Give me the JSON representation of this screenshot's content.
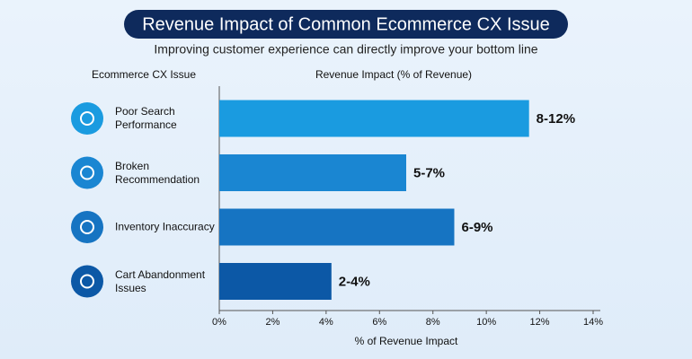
{
  "chart_data": {
    "type": "hbar",
    "title": "Revenue Impact of Common Ecommerce CX Issue",
    "subtitle": "Improving customer experience can directly improve your bottom line",
    "category_header": "Ecommerce CX Issue",
    "value_header": "Revenue Impact (% of Revenue)",
    "x_label": "% of Revenue Impact",
    "categories": [
      "Poor Search Performance",
      "Broken Recommendation",
      "Inventory Inaccuracy",
      "Cart Abandonment Issues"
    ],
    "values": [
      11.6,
      7,
      8.8,
      4.2
    ],
    "value_labels": [
      "8-12%",
      "5-7%",
      "6-9%",
      "2-4%"
    ],
    "colors": [
      "#1a9be0",
      "#1a86d2",
      "#1674c2",
      "#0c58a6"
    ],
    "xlim": [
      0,
      14
    ],
    "xticks": [
      {
        "value": 0,
        "label": "0%"
      },
      {
        "value": 2,
        "label": "2%"
      },
      {
        "value": 4,
        "label": "4%"
      },
      {
        "value": 6,
        "label": "6%"
      },
      {
        "value": 8,
        "label": "8%"
      },
      {
        "value": 10,
        "label": "10%"
      },
      {
        "value": 12,
        "label": "12%"
      },
      {
        "value": 14,
        "label": "14%"
      }
    ]
  }
}
